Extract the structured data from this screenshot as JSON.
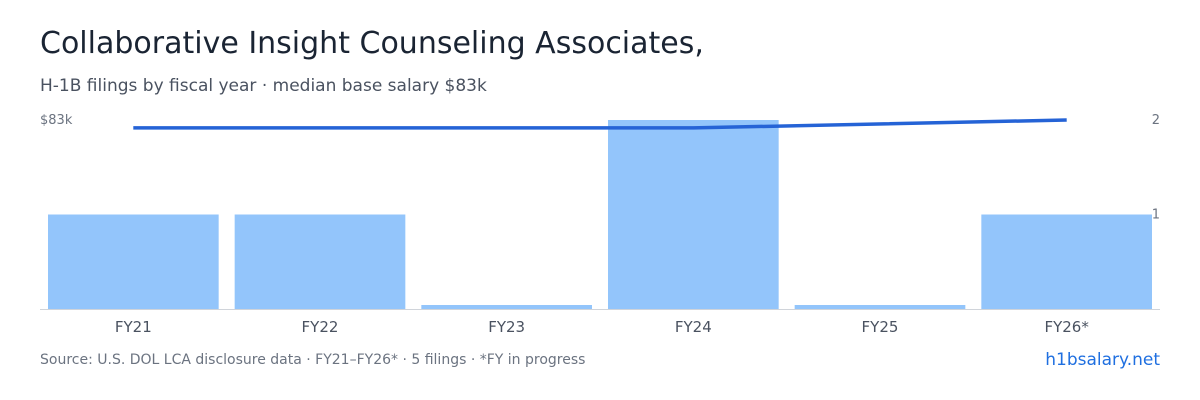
{
  "header": {
    "title": "Collaborative Insight Counseling Associates,",
    "subtitle": "H-1B filings by fiscal year · median base salary $83k"
  },
  "colors": {
    "bar": "#93c5fb",
    "line": "#2563d6",
    "baseline": "#d0d4da"
  },
  "chart_data": {
    "type": "bar",
    "categories": [
      "FY21",
      "FY22",
      "FY23",
      "FY24",
      "FY25",
      "FY26*"
    ],
    "series": [
      {
        "type": "bar",
        "axis": "right",
        "values": [
          1,
          1,
          0,
          2,
          0,
          1
        ]
      },
      {
        "type": "line",
        "axis": "left",
        "values": [
          83,
          83,
          83,
          83,
          null,
          84
        ]
      }
    ],
    "y_right": {
      "ylim": [
        0,
        2
      ],
      "ticks": [
        "1",
        "2"
      ]
    },
    "y_left": {
      "ylim": [
        60,
        84
      ],
      "tick_label": "$83k"
    }
  },
  "footer": {
    "source": "Source: U.S. DOL LCA disclosure data · FY21–FY26* · 5 filings · *FY in progress",
    "brand": "h1bsalary.net"
  }
}
